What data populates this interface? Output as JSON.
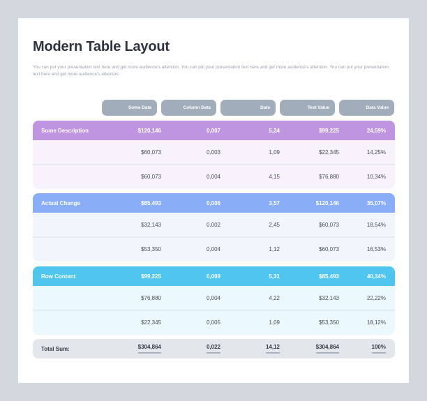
{
  "title": "Modern Table Layout",
  "description": "You can put your presentation text here and get more audience's attention. You can put your presentation text here and get more audience's attention. You can put your presentation text here and get more audience's attention.",
  "colors": {
    "header": "#a2adbb",
    "group1": "#bf94e0",
    "group1_bg": "#f7f2fb",
    "group2": "#89aef7",
    "group2_bg": "#f1f5fc",
    "group3": "#4fc6ef",
    "group3_bg": "#ebf8fd",
    "total_bg": "#e3e7ec"
  },
  "headers": [
    "Some Data",
    "Column Data",
    "Data",
    "Text Value",
    "Data Value"
  ],
  "groups": [
    {
      "label": "Some Description",
      "summary": [
        "$120,146",
        "0,007",
        "5,24",
        "$99,225",
        "24,59%"
      ],
      "rows": [
        [
          "$60,073",
          "0,003",
          "1,09",
          "$22,345",
          "14,25%"
        ],
        [
          "$60,073",
          "0,004",
          "4,15",
          "$76,880",
          "10,34%"
        ]
      ]
    },
    {
      "label": "Actual Change",
      "summary": [
        "$85,493",
        "0,006",
        "3,57",
        "$120,146",
        "35,07%"
      ],
      "rows": [
        [
          "$32,143",
          "0,002",
          "2,45",
          "$60,073",
          "18,54%"
        ],
        [
          "$53,350",
          "0,004",
          "1,12",
          "$60,073",
          "16,53%"
        ]
      ]
    },
    {
      "label": "Row Content",
      "summary": [
        "$99,225",
        "0,009",
        "5,31",
        "$85,493",
        "40,34%"
      ],
      "rows": [
        [
          "$76,880",
          "0,004",
          "4,22",
          "$32,143",
          "22,22%"
        ],
        [
          "$22,345",
          "0,005",
          "1,09",
          "$53,350",
          "18,12%"
        ]
      ]
    }
  ],
  "total": {
    "label": "Total Sum:",
    "values": [
      "$304,864",
      "0,022",
      "14,12",
      "$304,864",
      "100%"
    ]
  }
}
